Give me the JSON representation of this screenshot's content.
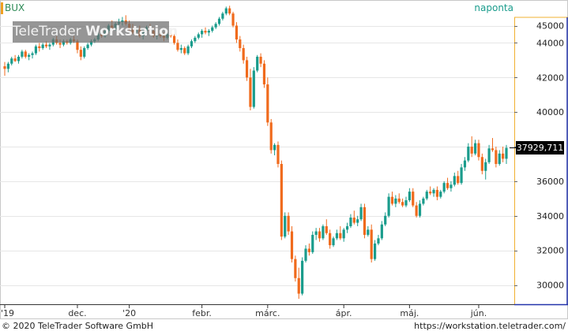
{
  "header": {
    "symbol": "BUX",
    "interval": "naponta"
  },
  "watermark": {
    "brand": "TeleTrader ",
    "product": "Workstation"
  },
  "current_price_label": "37929,711",
  "footer": {
    "copyright": "© 2020 TeleTrader Software GmbH",
    "url": "https://workstation.teletrader.com/"
  },
  "colors": {
    "up": "#1a9c8c",
    "down": "#f06a1c",
    "grid": "#e6e6e6",
    "axis": "#333333",
    "price_axis_border": "#2233aa"
  },
  "chart_data": {
    "type": "candlestick",
    "title": "BUX",
    "ylim": [
      29000,
      46500
    ],
    "y_ticks": [
      30000,
      32000,
      34000,
      36000,
      38000,
      40000,
      42000,
      44000,
      45000
    ],
    "y_tick_labels": [
      "30000",
      "32000",
      "34000",
      "36000",
      "38000",
      "40000",
      "42000",
      "44000",
      "45000"
    ],
    "x_ticks": [
      {
        "label": "'19",
        "index": 0
      },
      {
        "label": "dec.",
        "index": 21
      },
      {
        "label": "'20",
        "index": 36
      },
      {
        "label": "febr.",
        "index": 57
      },
      {
        "label": "márc.",
        "index": 76
      },
      {
        "label": "ápr.",
        "index": 98
      },
      {
        "label": "máj.",
        "index": 117
      },
      {
        "label": "jún.",
        "index": 137
      }
    ],
    "last_value": 37929.711,
    "candles": [
      [
        42650,
        42900,
        42100,
        42500
      ],
      [
        42500,
        42900,
        42300,
        42800
      ],
      [
        42800,
        43200,
        42700,
        43100
      ],
      [
        43100,
        43300,
        42900,
        42950
      ],
      [
        42950,
        43300,
        42800,
        43200
      ],
      [
        43200,
        43600,
        43100,
        43500
      ],
      [
        43500,
        43600,
        43100,
        43200
      ],
      [
        43200,
        43400,
        43000,
        43300
      ],
      [
        43300,
        43500,
        43100,
        43400
      ],
      [
        43400,
        43900,
        43300,
        43800
      ],
      [
        43800,
        44000,
        43500,
        43700
      ],
      [
        43700,
        44000,
        43600,
        43900
      ],
      [
        43900,
        44100,
        43700,
        43800
      ],
      [
        43800,
        44000,
        43600,
        43900
      ],
      [
        43900,
        44300,
        43800,
        44200
      ],
      [
        44200,
        44400,
        43900,
        44000
      ],
      [
        44000,
        44200,
        43700,
        43900
      ],
      [
        43900,
        44200,
        43800,
        44100
      ],
      [
        44100,
        44200,
        43900,
        44000
      ],
      [
        44000,
        44300,
        43900,
        44200
      ],
      [
        44200,
        44400,
        44000,
        44100
      ],
      [
        44100,
        44200,
        43400,
        43600
      ],
      [
        43600,
        43800,
        43000,
        43200
      ],
      [
        43200,
        43800,
        43100,
        43700
      ],
      [
        43700,
        44000,
        43600,
        43900
      ],
      [
        43900,
        44200,
        43800,
        44100
      ],
      [
        44100,
        44300,
        44000,
        44200
      ],
      [
        44200,
        44600,
        44100,
        44500
      ],
      [
        44500,
        44700,
        44300,
        44400
      ],
      [
        44400,
        44800,
        44300,
        44700
      ],
      [
        44700,
        45100,
        44600,
        45000
      ],
      [
        45000,
        45300,
        44700,
        44800
      ],
      [
        44800,
        45200,
        44700,
        45100
      ],
      [
        45100,
        45400,
        44900,
        45200
      ],
      [
        45200,
        45500,
        45000,
        45300
      ],
      [
        45300,
        45600,
        45000,
        45100
      ],
      [
        45100,
        45300,
        44700,
        44800
      ],
      [
        44800,
        45100,
        44500,
        44600
      ],
      [
        44600,
        44900,
        44400,
        44800
      ],
      [
        44800,
        45000,
        44300,
        44400
      ],
      [
        44400,
        44800,
        44200,
        44700
      ],
      [
        44700,
        45000,
        44500,
        44900
      ],
      [
        44900,
        45100,
        44600,
        44700
      ],
      [
        44700,
        44900,
        44300,
        44400
      ],
      [
        44400,
        44700,
        44200,
        44500
      ],
      [
        44500,
        44700,
        44300,
        44400
      ],
      [
        44400,
        44600,
        44100,
        44300
      ],
      [
        44300,
        44600,
        44200,
        44500
      ],
      [
        44500,
        44700,
        44300,
        44400
      ],
      [
        44400,
        44500,
        43900,
        44000
      ],
      [
        44000,
        44200,
        43500,
        43600
      ],
      [
        43600,
        43900,
        43400,
        43700
      ],
      [
        43700,
        43800,
        43300,
        43400
      ],
      [
        43400,
        43900,
        43300,
        43800
      ],
      [
        43800,
        44200,
        43700,
        44100
      ],
      [
        44100,
        44400,
        44000,
        44300
      ],
      [
        44300,
        44600,
        44200,
        44500
      ],
      [
        44500,
        44800,
        44300,
        44700
      ],
      [
        44700,
        44900,
        44500,
        44600
      ],
      [
        44600,
        44800,
        44400,
        44700
      ],
      [
        44700,
        45000,
        44600,
        44900
      ],
      [
        44900,
        45200,
        44800,
        45100
      ],
      [
        45100,
        45500,
        45000,
        45400
      ],
      [
        45400,
        45800,
        45300,
        45700
      ],
      [
        45700,
        46100,
        45600,
        46000
      ],
      [
        46000,
        46150,
        45600,
        45700
      ],
      [
        45700,
        45800,
        44900,
        45000
      ],
      [
        45000,
        45200,
        44000,
        44200
      ],
      [
        44200,
        44400,
        43500,
        43700
      ],
      [
        43700,
        43900,
        42800,
        43000
      ],
      [
        43000,
        43200,
        41800,
        42000
      ],
      [
        42000,
        42500,
        40100,
        40300
      ],
      [
        40300,
        42600,
        40200,
        42400
      ],
      [
        42400,
        43300,
        42300,
        43200
      ],
      [
        43200,
        43400,
        42600,
        42800
      ],
      [
        42800,
        43000,
        41400,
        41600
      ],
      [
        41600,
        42000,
        39200,
        39400
      ],
      [
        39400,
        39600,
        37600,
        37800
      ],
      [
        37800,
        38200,
        37500,
        38100
      ],
      [
        38100,
        38300,
        36800,
        37000
      ],
      [
        37000,
        37200,
        32600,
        32800
      ],
      [
        32800,
        34200,
        32700,
        34000
      ],
      [
        34000,
        34200,
        32900,
        33100
      ],
      [
        33100,
        33400,
        31300,
        31500
      ],
      [
        31500,
        31700,
        30200,
        30400
      ],
      [
        30400,
        31000,
        29200,
        29500
      ],
      [
        29500,
        31600,
        29400,
        31400
      ],
      [
        31400,
        32300,
        31300,
        32100
      ],
      [
        32100,
        32400,
        31700,
        31900
      ],
      [
        31900,
        33100,
        31800,
        32900
      ],
      [
        32900,
        33300,
        32600,
        33100
      ],
      [
        33100,
        33300,
        32500,
        32700
      ],
      [
        32700,
        33500,
        32600,
        33400
      ],
      [
        33400,
        33800,
        32900,
        33000
      ],
      [
        33000,
        33200,
        32100,
        32300
      ],
      [
        32300,
        32800,
        32200,
        32700
      ],
      [
        32700,
        33200,
        32600,
        33000
      ],
      [
        33000,
        33400,
        32600,
        32700
      ],
      [
        32700,
        33300,
        32500,
        33200
      ],
      [
        33200,
        33600,
        33000,
        33400
      ],
      [
        33400,
        34100,
        33300,
        33900
      ],
      [
        33900,
        34300,
        33500,
        33600
      ],
      [
        33600,
        34000,
        33400,
        33800
      ],
      [
        33800,
        34700,
        33700,
        34500
      ],
      [
        34500,
        34700,
        32700,
        32900
      ],
      [
        32900,
        33400,
        32800,
        33200
      ],
      [
        33200,
        33500,
        31300,
        31500
      ],
      [
        31500,
        32600,
        31400,
        32400
      ],
      [
        32400,
        32900,
        32300,
        32700
      ],
      [
        32700,
        33700,
        32600,
        33500
      ],
      [
        33500,
        34200,
        33400,
        34000
      ],
      [
        34000,
        35300,
        33900,
        35100
      ],
      [
        35100,
        35400,
        34600,
        34700
      ],
      [
        34700,
        35200,
        34500,
        35000
      ],
      [
        35000,
        35300,
        34700,
        34800
      ],
      [
        34800,
        35000,
        34500,
        34600
      ],
      [
        34600,
        35100,
        34500,
        34900
      ],
      [
        34900,
        35600,
        34800,
        35400
      ],
      [
        35400,
        35600,
        34500,
        34600
      ],
      [
        34600,
        34800,
        33900,
        34000
      ],
      [
        34000,
        34900,
        33900,
        34700
      ],
      [
        34700,
        35100,
        34600,
        35000
      ],
      [
        35000,
        35500,
        34900,
        35400
      ],
      [
        35400,
        35700,
        35200,
        35300
      ],
      [
        35300,
        35600,
        35100,
        35500
      ],
      [
        35500,
        35700,
        34900,
        35100
      ],
      [
        35100,
        35500,
        35000,
        35400
      ],
      [
        35400,
        36000,
        35300,
        35900
      ],
      [
        35900,
        36200,
        35500,
        35600
      ],
      [
        35600,
        36000,
        35400,
        35800
      ],
      [
        35800,
        36500,
        35700,
        36300
      ],
      [
        36300,
        36600,
        35800,
        35900
      ],
      [
        35900,
        37000,
        35800,
        36800
      ],
      [
        36800,
        37400,
        36600,
        37200
      ],
      [
        37200,
        38200,
        37100,
        38000
      ],
      [
        38000,
        38600,
        37400,
        37600
      ],
      [
        37600,
        38400,
        37500,
        38200
      ],
      [
        38200,
        38400,
        37200,
        37400
      ],
      [
        37400,
        37600,
        36400,
        36600
      ],
      [
        36600,
        37300,
        36100,
        37100
      ],
      [
        37100,
        38100,
        37000,
        37900
      ],
      [
        37900,
        38500,
        37700,
        37800
      ],
      [
        37800,
        38000,
        36800,
        37000
      ],
      [
        37000,
        37800,
        36900,
        37600
      ],
      [
        37600,
        38000,
        37100,
        37300
      ],
      [
        37300,
        38100,
        37000,
        37930
      ]
    ]
  }
}
